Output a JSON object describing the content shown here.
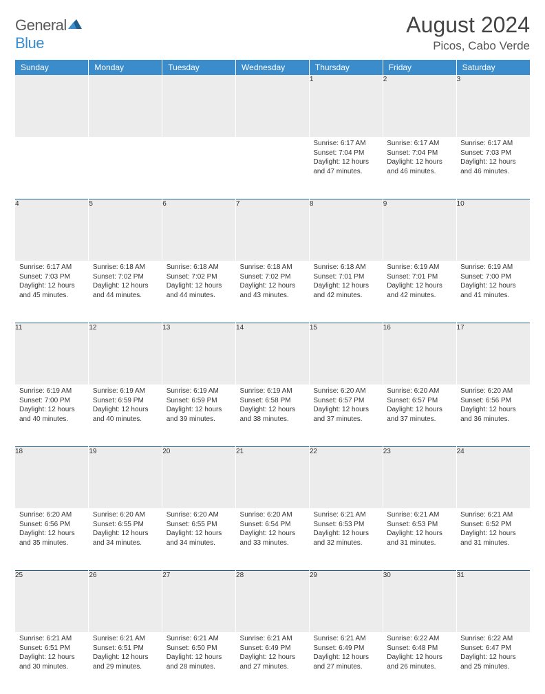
{
  "logo": {
    "word1": "General",
    "word2": "Blue"
  },
  "title": "August 2024",
  "location": "Picos, Cabo Verde",
  "colors": {
    "header_bg": "#3b8ccb",
    "header_text": "#ffffff",
    "daynum_bg": "#ececec",
    "sep_line": "#1f5d8a",
    "body_text": "#333333"
  },
  "day_headers": [
    "Sunday",
    "Monday",
    "Tuesday",
    "Wednesday",
    "Thursday",
    "Friday",
    "Saturday"
  ],
  "weeks": [
    [
      null,
      null,
      null,
      null,
      {
        "n": "1",
        "sr": "6:17 AM",
        "ss": "7:04 PM",
        "dl": "12 hours and 47 minutes."
      },
      {
        "n": "2",
        "sr": "6:17 AM",
        "ss": "7:04 PM",
        "dl": "12 hours and 46 minutes."
      },
      {
        "n": "3",
        "sr": "6:17 AM",
        "ss": "7:03 PM",
        "dl": "12 hours and 46 minutes."
      }
    ],
    [
      {
        "n": "4",
        "sr": "6:17 AM",
        "ss": "7:03 PM",
        "dl": "12 hours and 45 minutes."
      },
      {
        "n": "5",
        "sr": "6:18 AM",
        "ss": "7:02 PM",
        "dl": "12 hours and 44 minutes."
      },
      {
        "n": "6",
        "sr": "6:18 AM",
        "ss": "7:02 PM",
        "dl": "12 hours and 44 minutes."
      },
      {
        "n": "7",
        "sr": "6:18 AM",
        "ss": "7:02 PM",
        "dl": "12 hours and 43 minutes."
      },
      {
        "n": "8",
        "sr": "6:18 AM",
        "ss": "7:01 PM",
        "dl": "12 hours and 42 minutes."
      },
      {
        "n": "9",
        "sr": "6:19 AM",
        "ss": "7:01 PM",
        "dl": "12 hours and 42 minutes."
      },
      {
        "n": "10",
        "sr": "6:19 AM",
        "ss": "7:00 PM",
        "dl": "12 hours and 41 minutes."
      }
    ],
    [
      {
        "n": "11",
        "sr": "6:19 AM",
        "ss": "7:00 PM",
        "dl": "12 hours and 40 minutes."
      },
      {
        "n": "12",
        "sr": "6:19 AM",
        "ss": "6:59 PM",
        "dl": "12 hours and 40 minutes."
      },
      {
        "n": "13",
        "sr": "6:19 AM",
        "ss": "6:59 PM",
        "dl": "12 hours and 39 minutes."
      },
      {
        "n": "14",
        "sr": "6:19 AM",
        "ss": "6:58 PM",
        "dl": "12 hours and 38 minutes."
      },
      {
        "n": "15",
        "sr": "6:20 AM",
        "ss": "6:57 PM",
        "dl": "12 hours and 37 minutes."
      },
      {
        "n": "16",
        "sr": "6:20 AM",
        "ss": "6:57 PM",
        "dl": "12 hours and 37 minutes."
      },
      {
        "n": "17",
        "sr": "6:20 AM",
        "ss": "6:56 PM",
        "dl": "12 hours and 36 minutes."
      }
    ],
    [
      {
        "n": "18",
        "sr": "6:20 AM",
        "ss": "6:56 PM",
        "dl": "12 hours and 35 minutes."
      },
      {
        "n": "19",
        "sr": "6:20 AM",
        "ss": "6:55 PM",
        "dl": "12 hours and 34 minutes."
      },
      {
        "n": "20",
        "sr": "6:20 AM",
        "ss": "6:55 PM",
        "dl": "12 hours and 34 minutes."
      },
      {
        "n": "21",
        "sr": "6:20 AM",
        "ss": "6:54 PM",
        "dl": "12 hours and 33 minutes."
      },
      {
        "n": "22",
        "sr": "6:21 AM",
        "ss": "6:53 PM",
        "dl": "12 hours and 32 minutes."
      },
      {
        "n": "23",
        "sr": "6:21 AM",
        "ss": "6:53 PM",
        "dl": "12 hours and 31 minutes."
      },
      {
        "n": "24",
        "sr": "6:21 AM",
        "ss": "6:52 PM",
        "dl": "12 hours and 31 minutes."
      }
    ],
    [
      {
        "n": "25",
        "sr": "6:21 AM",
        "ss": "6:51 PM",
        "dl": "12 hours and 30 minutes."
      },
      {
        "n": "26",
        "sr": "6:21 AM",
        "ss": "6:51 PM",
        "dl": "12 hours and 29 minutes."
      },
      {
        "n": "27",
        "sr": "6:21 AM",
        "ss": "6:50 PM",
        "dl": "12 hours and 28 minutes."
      },
      {
        "n": "28",
        "sr": "6:21 AM",
        "ss": "6:49 PM",
        "dl": "12 hours and 27 minutes."
      },
      {
        "n": "29",
        "sr": "6:21 AM",
        "ss": "6:49 PM",
        "dl": "12 hours and 27 minutes."
      },
      {
        "n": "30",
        "sr": "6:22 AM",
        "ss": "6:48 PM",
        "dl": "12 hours and 26 minutes."
      },
      {
        "n": "31",
        "sr": "6:22 AM",
        "ss": "6:47 PM",
        "dl": "12 hours and 25 minutes."
      }
    ]
  ],
  "labels": {
    "sunrise": "Sunrise:",
    "sunset": "Sunset:",
    "daylight": "Daylight:"
  }
}
